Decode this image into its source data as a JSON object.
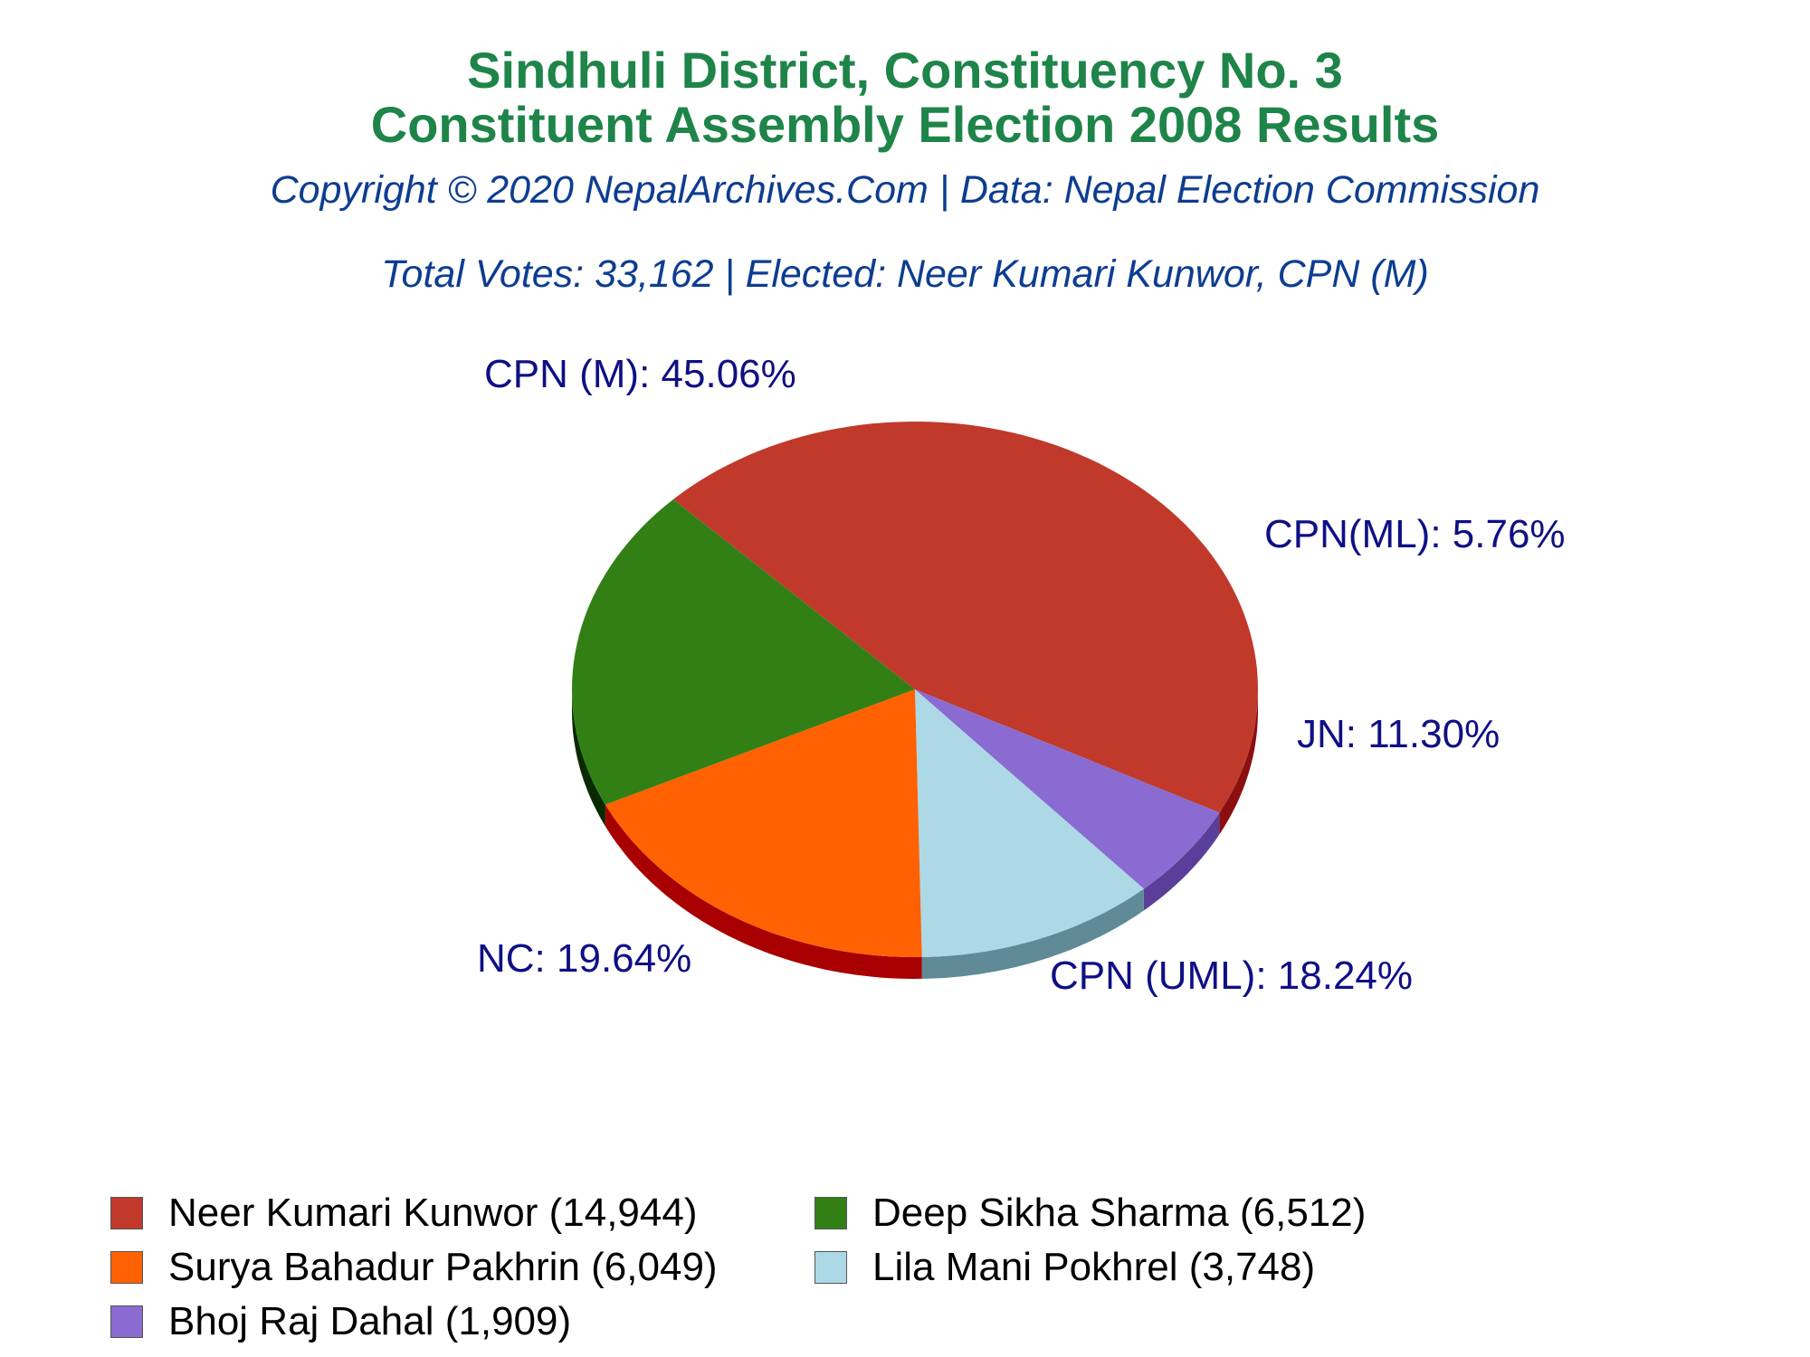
{
  "header": {
    "title_line1": "Sindhuli District, Constituency No. 3",
    "title_line2": "Constituent Assembly Election 2008 Results",
    "copyright": "Copyright © 2020 NepalArchives.Com | Data: Nepal Election Commission",
    "summary": "Total Votes: 33,162 | Elected: Neer Kumari Kunwor, CPN (M)"
  },
  "chart_data": {
    "type": "pie",
    "slices": [
      {
        "party": "CPN (M)",
        "percent": 45.06,
        "label": "CPN (M): 45.06%",
        "color": "#c0392b",
        "side_color": "#8b0f0f"
      },
      {
        "party": "CPN(ML)",
        "percent": 5.76,
        "label": "CPN(ML): 5.76%",
        "color": "#8a6bd1",
        "side_color": "#5a3f9a"
      },
      {
        "party": "JN",
        "percent": 11.3,
        "label": "JN: 11.30%",
        "color": "#add8e6",
        "side_color": "#5f8a96"
      },
      {
        "party": "CPN (UML)",
        "percent": 18.24,
        "label": "CPN (UML): 18.24%",
        "color": "#ff6103",
        "side_color": "#a80000"
      },
      {
        "party": "NC",
        "percent": 19.64,
        "label": "NC: 19.64%",
        "color": "#328015",
        "side_color": "#0a2a00"
      }
    ],
    "label_color": "#0f0f85",
    "legend": [
      {
        "name": "Neer Kumari Kunwor (14,944)",
        "color": "#c0392b"
      },
      {
        "name": "Deep Sikha Sharma (6,512)",
        "color": "#328015"
      },
      {
        "name": "Surya Bahadur Pakhrin (6,049)",
        "color": "#ff6103"
      },
      {
        "name": "Lila Mani Pokhrel (3,748)",
        "color": "#add8e6"
      },
      {
        "name": "Bhoj Raj Dahal (1,909)",
        "color": "#8a6bd1"
      }
    ]
  }
}
